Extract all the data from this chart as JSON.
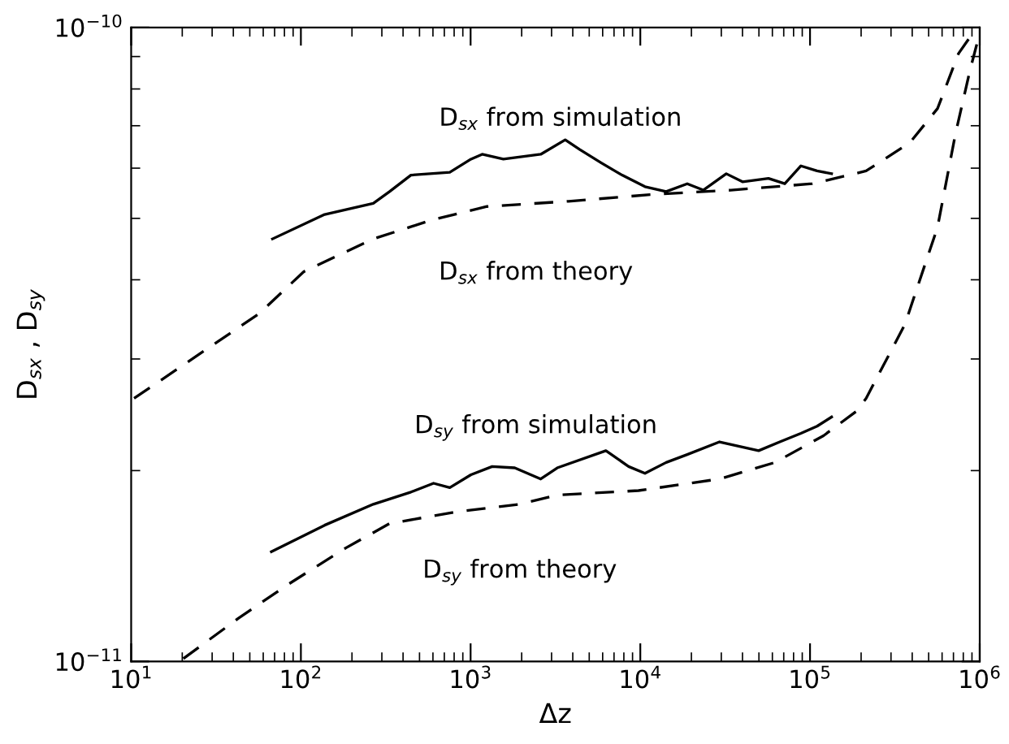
{
  "chart_data": {
    "type": "line",
    "xlabel": "Δz",
    "ylabel": "D$_{sx}$ , D$_{sy}$",
    "log": "xy",
    "grid": false,
    "legend": false,
    "xlim": [
      10,
      1000000
    ],
    "ylim": [
      1e-11,
      1e-10
    ],
    "xticks": [
      {
        "value": 10,
        "label": "10$^{1}$"
      },
      {
        "value": 100,
        "label": "10$^{2}$"
      },
      {
        "value": 1000,
        "label": "10$^{3}$"
      },
      {
        "value": 10000,
        "label": "10$^{4}$"
      },
      {
        "value": 100000,
        "label": "10$^{5}$"
      },
      {
        "value": 1000000,
        "label": "10$^{6}$"
      }
    ],
    "yticks": [
      {
        "value": 1e-11,
        "label": "10$^{−11}$"
      },
      {
        "value": 1e-10,
        "label": "10$^{−10}$"
      }
    ],
    "annotations": [
      "D$_{sx}$ from simulation",
      "D$_{sx}$ from theory",
      "D$_{sy}$ from simulation",
      "D$_{sy}$ from theory"
    ],
    "series": [
      {
        "color": "#000000",
        "line_style": "solid",
        "x": [
          68,
          138,
          267,
          333,
          445,
          754,
          1005,
          1170,
          1560,
          2590,
          3610,
          4400,
          5870,
          7810,
          10650,
          14200,
          18900,
          23500,
          32100,
          40000,
          56900,
          71000,
          88400,
          110000,
          134000
        ],
        "values": [
          4.64e-11,
          5.07e-11,
          5.28e-11,
          5.51e-11,
          5.85e-11,
          5.91e-11,
          6.2e-11,
          6.31e-11,
          6.2e-11,
          6.31e-11,
          6.65e-11,
          6.42e-11,
          6.12e-11,
          5.85e-11,
          5.61e-11,
          5.51e-11,
          5.67e-11,
          5.54e-11,
          5.88e-11,
          5.71e-11,
          5.78e-11,
          5.67e-11,
          6.05e-11,
          5.94e-11,
          5.88e-11
        ]
      },
      {
        "color": "#000000",
        "line_style": "dashed",
        "x": [
          10.4,
          57,
          104,
          267,
          605,
          1250,
          3780,
          11400,
          34200,
          103000,
          214000,
          387000,
          564000,
          750000,
          936000
        ],
        "values": [
          2.6e-11,
          3.54e-11,
          4.12e-11,
          4.64e-11,
          4.98e-11,
          5.22e-11,
          5.32e-11,
          5.45e-11,
          5.54e-11,
          5.67e-11,
          5.94e-11,
          6.58e-11,
          7.45e-11,
          9.1e-11,
          9.9e-11
        ]
      },
      {
        "color": "#000000",
        "line_style": "solid",
        "x": [
          67,
          138,
          267,
          445,
          605,
          754,
          1005,
          1340,
          1820,
          2590,
          3240,
          6270,
          8530,
          10650,
          14200,
          18900,
          29300,
          49800,
          66400,
          88400,
          110000,
          134000
        ],
        "values": [
          1.49e-11,
          1.64e-11,
          1.77e-11,
          1.85e-11,
          1.91e-11,
          1.88e-11,
          1.97e-11,
          2.03e-11,
          2.02e-11,
          1.94e-11,
          2.02e-11,
          2.15e-11,
          2.03e-11,
          1.98e-11,
          2.06e-11,
          2.12e-11,
          2.22e-11,
          2.15e-11,
          2.22e-11,
          2.29e-11,
          2.35e-11,
          2.43e-11
        ]
      },
      {
        "color": "#000000",
        "line_style": "dashed",
        "x": [
          20.3,
          42.9,
          83,
          184,
          333,
          805,
          1950,
          3240,
          9750,
          29300,
          62100,
          120000,
          187000,
          214000,
          362000,
          564000,
          718000,
          877000,
          1000000
        ],
        "values": [
          1.01e-11,
          1.17e-11,
          1.32e-11,
          1.51e-11,
          1.65e-11,
          1.72e-11,
          1.77e-11,
          1.83e-11,
          1.86e-11,
          1.94e-11,
          2.06e-11,
          2.27e-11,
          2.48e-11,
          2.6e-11,
          3.4e-11,
          4.84e-11,
          6.78e-11,
          8.57e-11,
          9.8e-11
        ]
      }
    ]
  }
}
